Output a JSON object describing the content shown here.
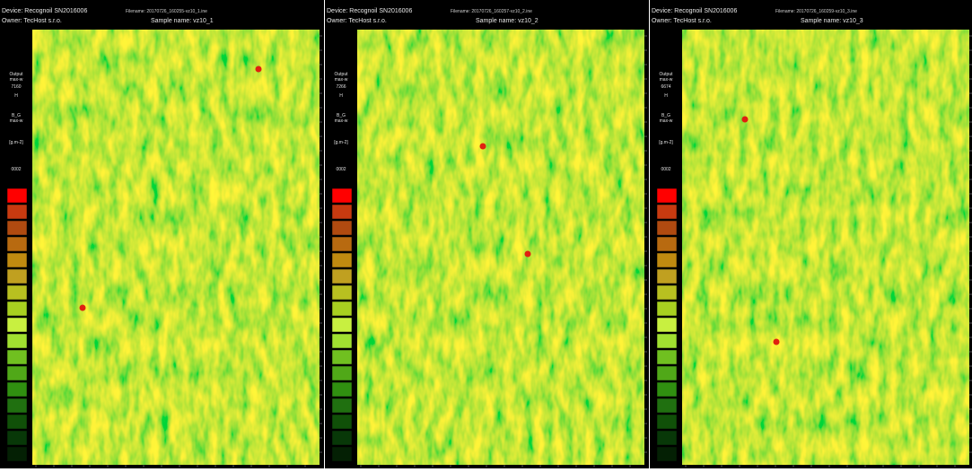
{
  "panels": [
    {
      "device": "Device: Recognoil SN2016006",
      "owner": "Owner: TecHost s.r.o.",
      "filename": "Filename: 20170726_160255-vz10_1.ine",
      "sample_name": "Sample name: vz10_1",
      "side_labels": [
        "Output",
        "max-w",
        "7160",
        "H",
        "B_G",
        "max-w",
        "[g.m-2]",
        "0002"
      ]
    },
    {
      "device": "Device: Recognoil SN2016006",
      "owner": "Owner: TecHost s.r.o.",
      "filename": "Filename: 20170726_160257-vz10_2.ine",
      "sample_name": "Sample name: vz10_2",
      "side_labels": [
        "Output",
        "max-w",
        "7266",
        "H",
        "B_G",
        "max-w",
        "[g.m-2]",
        "0002"
      ]
    },
    {
      "device": "Device: Recognoil SN2016006",
      "owner": "Owner: TecHost s.r.o.",
      "filename": "Filename: 20170726_160259-vz10_3.ine",
      "sample_name": "Sample name: vz10_3",
      "side_labels": [
        "Output",
        "max-w",
        "6674",
        "H",
        "B_G",
        "max-w",
        "[g.m-2]",
        "0002"
      ]
    }
  ]
}
